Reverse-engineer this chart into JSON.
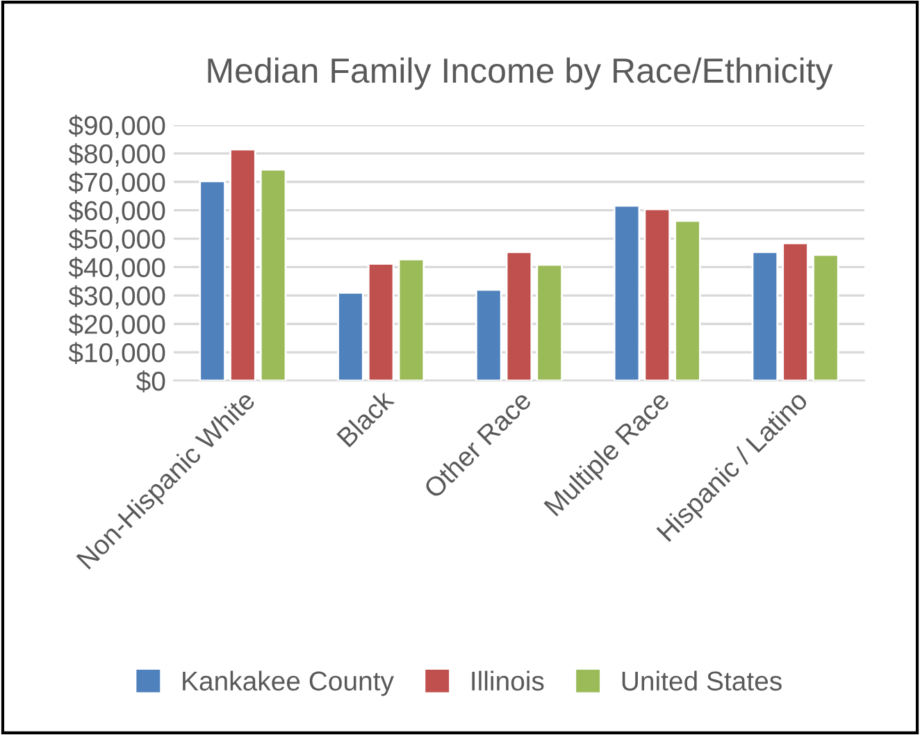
{
  "chart_data": {
    "type": "bar",
    "title": "Median Family Income by Race/Ethnicity",
    "categories": [
      "Non-Hispanic White",
      "Black",
      "Other Race",
      "Multiple Race",
      "Hispanic / Latino"
    ],
    "series": [
      {
        "name": "Kankakee County",
        "color": "#4f81bd",
        "values": [
          70200,
          31000,
          32000,
          61600,
          45300
        ]
      },
      {
        "name": "Illinois",
        "color": "#c0504d",
        "values": [
          81400,
          41200,
          45300,
          60400,
          48400
        ]
      },
      {
        "name": "United States",
        "color": "#9bbb59",
        "values": [
          74300,
          42700,
          40800,
          56300,
          44300
        ]
      }
    ],
    "ylim": [
      0,
      90000
    ],
    "yticks": [
      {
        "value": 0,
        "label": "$0"
      },
      {
        "value": 10000,
        "label": "$10,000"
      },
      {
        "value": 20000,
        "label": "$20,000"
      },
      {
        "value": 30000,
        "label": "$30,000"
      },
      {
        "value": 40000,
        "label": "$40,000"
      },
      {
        "value": 50000,
        "label": "$50,000"
      },
      {
        "value": 60000,
        "label": "$60,000"
      },
      {
        "value": 70000,
        "label": "$70,000"
      },
      {
        "value": 80000,
        "label": "$80,000"
      },
      {
        "value": 90000,
        "label": "$90,000"
      }
    ],
    "grid": "y",
    "legend": "bottom"
  }
}
